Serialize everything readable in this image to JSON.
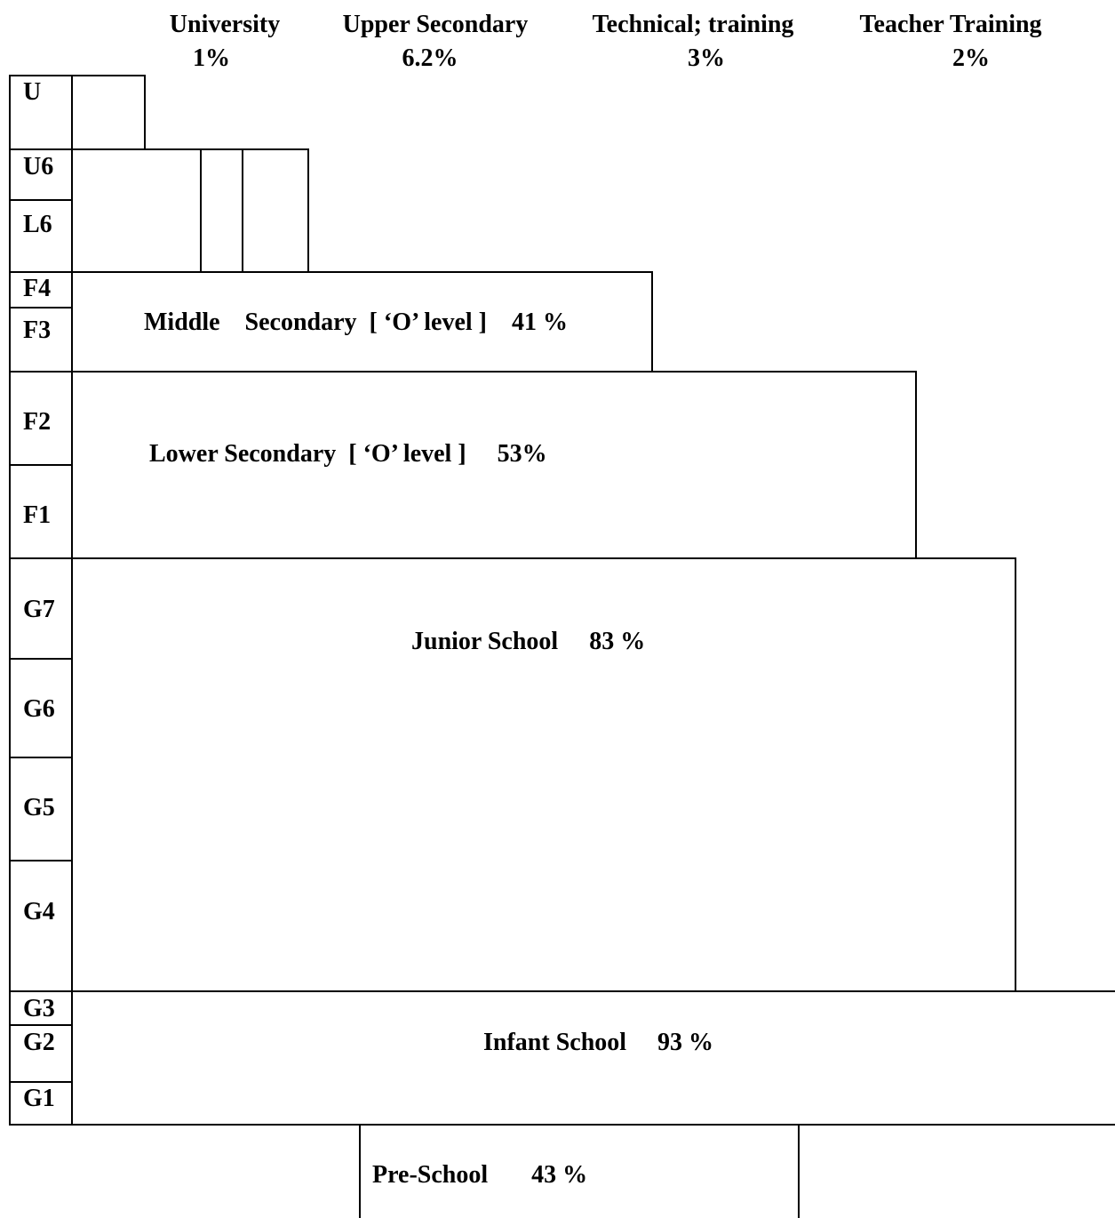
{
  "headers": [
    {
      "name": "University",
      "pct": "1%"
    },
    {
      "name": "Upper Secondary",
      "pct": "6.2%"
    },
    {
      "name": "Technical; training",
      "pct": "3%"
    },
    {
      "name": "Teacher Training",
      "pct": "2%"
    }
  ],
  "grades": [
    "U",
    "U6",
    "L6",
    "F4",
    "F3",
    "F2",
    "F1",
    "G7",
    "G6",
    "G5",
    "G4",
    "G3",
    "G2",
    "G1"
  ],
  "levels": {
    "middle": "Middle    Secondary  [ ‘O’ level ]    41 %",
    "lower": "Lower Secondary  [ ‘O’ level ]     53%",
    "junior": "Junior School     83 %",
    "infant": "Infant School     93 %",
    "preschool": "Pre-School       43 %"
  },
  "colors": {
    "line": "#000000",
    "background": "#ffffff",
    "text": "#000000"
  }
}
